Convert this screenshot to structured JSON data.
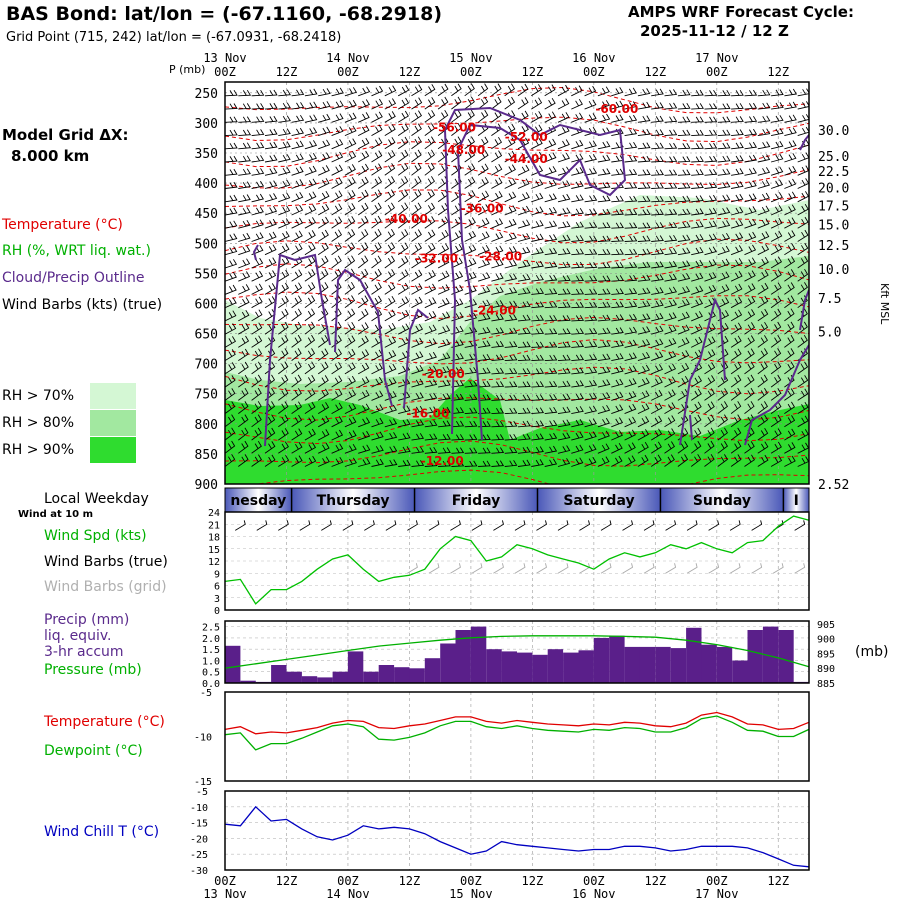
{
  "header": {
    "title": "BAS Bond:  lat/lon = (-67.1160, -68.2918)",
    "subtitle": "Grid Point (715, 242) lat/lon = (-67.0931, -68.2418)",
    "system": "AMPS WRF Forecast Cycle:",
    "cycle": "2025-11-12 / 12  Z"
  },
  "left_panel": {
    "model_grid_label": "Model Grid ΔX:",
    "model_grid_value": "8.000 km",
    "legend": {
      "temperature": "Temperature (°C)",
      "rh": "RH (%, WRT liq. wat.)",
      "cloud": "Cloud/Precip Outline",
      "wind": "Wind Barbs (kts) (true)"
    },
    "rh_swatches": [
      {
        "label": "RH > 70%",
        "color": "#d4f7d4"
      },
      {
        "label": "RH > 80%",
        "color": "#a2e8a0"
      },
      {
        "label": "RH > 90%",
        "color": "#2fdc2f"
      }
    ],
    "local_weekday": "Local Weekday",
    "wind_at_10m": "Wind at 10 m"
  },
  "time_axis": {
    "top_dates": [
      "13 Nov",
      "14 Nov",
      "15 Nov",
      "16 Nov",
      "17 Nov"
    ],
    "hour_labels": [
      "00Z",
      "12Z",
      "00Z",
      "12Z",
      "00Z",
      "12Z",
      "00Z",
      "12Z",
      "00Z",
      "12Z"
    ],
    "bottom_dates": [
      "13 Nov",
      "14 Nov",
      "15 Nov",
      "16 Nov",
      "17 Nov"
    ],
    "weekdays": [
      "nesday",
      "Thursday",
      "Friday",
      "Saturday",
      "Sunday",
      "I"
    ]
  },
  "chart_data": [
    {
      "type": "heatmap",
      "name": "cross-section",
      "ylabel": "P (mb)",
      "y2label": "Kft MSL",
      "pressure_ticks": [
        250,
        300,
        350,
        400,
        450,
        500,
        550,
        600,
        650,
        700,
        750,
        800,
        850,
        900
      ],
      "height_ticks": [
        "30.0",
        "25.0",
        "22.5",
        "20.0",
        "17.5",
        "15.0",
        "12.5",
        "10.0",
        "7.5",
        "5.0",
        "2.52"
      ],
      "height_tick_pressures": [
        312,
        355,
        380,
        407,
        437,
        469,
        503,
        543,
        591,
        647,
        900
      ],
      "x_hours": [
        0,
        114
      ],
      "temperature_labels": [
        {
          "text": "-60.00",
          "t": 76.5,
          "p": 277
        },
        {
          "text": "-56.00",
          "t": 44.8,
          "p": 308
        },
        {
          "text": "-52.00",
          "t": 58.8,
          "p": 323
        },
        {
          "text": "-48.00",
          "t": 46.6,
          "p": 345
        },
        {
          "text": "-44.00",
          "t": 58.8,
          "p": 360
        },
        {
          "text": "-36.00",
          "t": 50.2,
          "p": 442
        },
        {
          "text": "-40.00",
          "t": 35.4,
          "p": 460
        },
        {
          "text": "-32.00",
          "t": 41.3,
          "p": 525
        },
        {
          "text": "-28.00",
          "t": 53.8,
          "p": 522
        },
        {
          "text": "-24.00",
          "t": 52.6,
          "p": 612
        },
        {
          "text": "-20.00",
          "t": 42.6,
          "p": 717
        },
        {
          "text": "-16.00",
          "t": 39.6,
          "p": 783
        },
        {
          "text": "-12.00",
          "t": 42.4,
          "p": 862
        }
      ]
    },
    {
      "type": "line",
      "name": "wind speed",
      "label": "Wind Spd (kts)",
      "label2": "Wind Barbs (true)",
      "label3": "Wind Barbs (grid)",
      "yticks": [
        0,
        3,
        6,
        9,
        12,
        15,
        18,
        21,
        24
      ],
      "ylim": [
        0,
        24
      ],
      "x": [
        0,
        3,
        6,
        9,
        12,
        15,
        18,
        21,
        24,
        27,
        30,
        33,
        36,
        39,
        42,
        45,
        48,
        51,
        54,
        57,
        60,
        63,
        66,
        69,
        72,
        75,
        78,
        81,
        84,
        87,
        90,
        93,
        96,
        99,
        102,
        105,
        108,
        111,
        114
      ],
      "values": [
        7,
        7.5,
        1.5,
        5,
        5,
        7,
        10,
        12.5,
        13.5,
        10,
        7,
        8,
        8.5,
        10,
        15,
        18,
        17,
        12,
        13,
        16,
        15,
        13.5,
        12.5,
        11.5,
        10,
        12.5,
        14,
        13,
        14,
        16,
        15,
        16.5,
        15,
        14,
        16.5,
        17,
        20.5,
        23,
        22
      ]
    },
    {
      "type": "bar",
      "name": "precip and pressure",
      "label": "Precip (mm)",
      "label2": "liq. equiv.",
      "label3": "3-hr accum",
      "label4": "Pressure (mb)",
      "yticks": [
        0.0,
        0.5,
        1.0,
        1.5,
        2.0,
        2.5
      ],
      "y2ticks": [
        885,
        890,
        895,
        900,
        905
      ],
      "y2label": "(mb)",
      "ylim": [
        0,
        2.75
      ],
      "y2lim": [
        885,
        906
      ],
      "x": [
        0,
        3,
        6,
        9,
        12,
        15,
        18,
        21,
        24,
        27,
        30,
        33,
        36,
        39,
        42,
        45,
        48,
        51,
        54,
        57,
        60,
        63,
        66,
        69,
        72,
        75,
        78,
        81,
        84,
        87,
        90,
        93,
        96,
        99,
        102,
        105,
        108,
        111
      ],
      "values": [
        1.65,
        0.1,
        0.05,
        0.8,
        0.5,
        0.3,
        0.25,
        0.5,
        1.4,
        0.5,
        0.8,
        0.7,
        0.65,
        1.1,
        1.75,
        2.35,
        2.5,
        1.5,
        1.4,
        1.35,
        1.25,
        1.5,
        1.35,
        1.45,
        2.0,
        2.1,
        1.6,
        1.6,
        1.6,
        1.55,
        2.45,
        1.7,
        1.6,
        1.0,
        2.35,
        2.5,
        2.35,
        0.05
      ],
      "pressure_x": [
        0,
        6,
        12,
        18,
        24,
        30,
        36,
        42,
        48,
        54,
        60,
        66,
        72,
        78,
        84,
        90,
        96,
        102,
        108,
        114
      ],
      "pressure": [
        890,
        891.5,
        893,
        894.5,
        896,
        897.5,
        898.5,
        899.5,
        900.3,
        900.8,
        901,
        901,
        901,
        900.8,
        900.5,
        899.5,
        898,
        896,
        893.5,
        890.5
      ]
    },
    {
      "type": "line",
      "name": "temperature and dewpoint",
      "label": "Temperature (°C)",
      "label2": "Dewpoint (°C)",
      "yticks": [
        -5,
        -10,
        -15
      ],
      "ylim": [
        -15,
        -5
      ],
      "x": [
        0,
        3,
        6,
        9,
        12,
        15,
        18,
        21,
        24,
        27,
        30,
        33,
        36,
        39,
        42,
        45,
        48,
        51,
        54,
        57,
        60,
        63,
        66,
        69,
        72,
        75,
        78,
        81,
        84,
        87,
        90,
        93,
        96,
        99,
        102,
        105,
        108,
        111,
        114
      ],
      "series": [
        {
          "name": "Temperature",
          "values": [
            -9.2,
            -8.9,
            -9.7,
            -9.5,
            -9.6,
            -9.3,
            -9,
            -8.5,
            -8.2,
            -8.3,
            -9,
            -9.1,
            -8.8,
            -8.6,
            -8.2,
            -7.8,
            -7.8,
            -8.3,
            -8.5,
            -8.2,
            -8.4,
            -8.6,
            -8.7,
            -8.8,
            -8.6,
            -8.7,
            -8.4,
            -8.5,
            -8.8,
            -8.9,
            -8.5,
            -7.6,
            -7.3,
            -7.8,
            -8.6,
            -8.7,
            -9.2,
            -9.1,
            -8.4
          ]
        },
        {
          "name": "Dewpoint",
          "values": [
            -9.8,
            -9.6,
            -11.5,
            -10.8,
            -10.8,
            -10.2,
            -9.5,
            -8.8,
            -8.6,
            -8.9,
            -10.3,
            -10.4,
            -10.1,
            -9.6,
            -8.8,
            -8.3,
            -8.3,
            -8.9,
            -9.1,
            -8.8,
            -9.1,
            -9.3,
            -9.4,
            -9.5,
            -9.2,
            -9.3,
            -9,
            -9.1,
            -9.5,
            -9.5,
            -9,
            -8,
            -7.7,
            -8.4,
            -9.3,
            -9.4,
            -10,
            -10,
            -9.2
          ]
        }
      ]
    },
    {
      "type": "line",
      "name": "wind chill",
      "label": "Wind Chill T (°C)",
      "yticks": [
        -5,
        -10,
        -15,
        -20,
        -25,
        -30
      ],
      "ylim": [
        -30,
        -5
      ],
      "x": [
        0,
        3,
        6,
        9,
        12,
        15,
        18,
        21,
        24,
        27,
        30,
        33,
        36,
        39,
        42,
        45,
        48,
        51,
        54,
        57,
        60,
        63,
        66,
        69,
        72,
        75,
        78,
        81,
        84,
        87,
        90,
        93,
        96,
        99,
        102,
        105,
        108,
        111,
        114
      ],
      "values": [
        -15.5,
        -16,
        -10,
        -14.5,
        -14,
        -17,
        -19.5,
        -20.5,
        -19,
        -16,
        -17,
        -16.5,
        -17,
        -18.5,
        -21,
        -23,
        -25,
        -24,
        -21,
        -22,
        -22.5,
        -23,
        -23.5,
        -24,
        -23.5,
        -23.5,
        -22.5,
        -22.5,
        -23,
        -24,
        -23.5,
        -22.5,
        -22.5,
        -22.5,
        -23,
        -24.5,
        -26.5,
        -28.5,
        -29
      ]
    }
  ]
}
